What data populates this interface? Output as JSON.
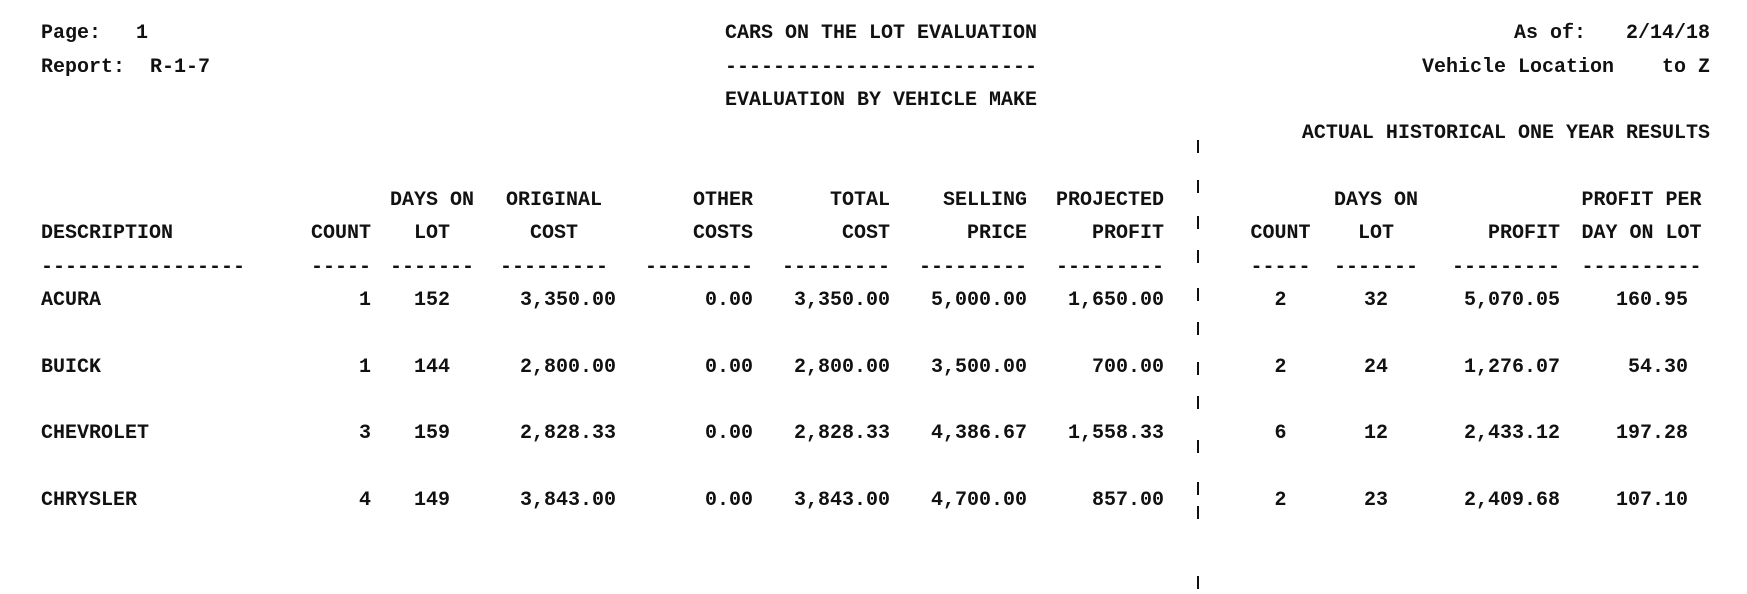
{
  "header": {
    "page_label": "Page:",
    "page_number": "1",
    "report_label": "Report:",
    "report_id": "R-1-7",
    "title": "CARS ON THE LOT EVALUATION",
    "title_underline": "--------------------------",
    "subtitle": "EVALUATION BY VEHICLE MAKE",
    "as_of_label": "As of:",
    "as_of_date": "2/14/18",
    "vehicle_location_label": "Vehicle Location",
    "vehicle_location_range": "to Z"
  },
  "historical_header": "ACTUAL HISTORICAL ONE YEAR RESULTS",
  "columns_current": [
    {
      "line1": "",
      "line2": "DESCRIPTION",
      "rule": "-----------------"
    },
    {
      "line1": "",
      "line2": "COUNT",
      "rule": "-----"
    },
    {
      "line1": "DAYS ON",
      "line2": "LOT",
      "rule": "-------"
    },
    {
      "line1": "ORIGINAL",
      "line2": "COST",
      "rule": "---------"
    },
    {
      "line1": "OTHER",
      "line2": "COSTS",
      "rule": "---------"
    },
    {
      "line1": "TOTAL",
      "line2": "COST",
      "rule": "---------"
    },
    {
      "line1": "SELLING",
      "line2": "PRICE",
      "rule": "---------"
    },
    {
      "line1": "PROJECTED",
      "line2": "PROFIT",
      "rule": "---------"
    }
  ],
  "columns_historical": [
    {
      "line1": "",
      "line2": "COUNT",
      "rule": "-----"
    },
    {
      "line1": "DAYS ON",
      "line2": "LOT",
      "rule": "-------"
    },
    {
      "line1": "",
      "line2": "PROFIT",
      "rule": "---------"
    },
    {
      "line1": "PROFIT PER",
      "line2": "DAY ON LOT",
      "rule": "----------"
    }
  ],
  "rows": [
    {
      "description": "ACURA",
      "count": "1",
      "days_on_lot": "152",
      "original_cost": "3,350.00",
      "other_costs": "0.00",
      "total_cost": "3,350.00",
      "selling_price": "5,000.00",
      "projected_profit": "1,650.00",
      "hist_count": "2",
      "hist_days_on_lot": "32",
      "hist_profit": "5,070.05",
      "hist_profit_per_day": "160.95"
    },
    {
      "description": "BUICK",
      "count": "1",
      "days_on_lot": "144",
      "original_cost": "2,800.00",
      "other_costs": "0.00",
      "total_cost": "2,800.00",
      "selling_price": "3,500.00",
      "projected_profit": "700.00",
      "hist_count": "2",
      "hist_days_on_lot": "24",
      "hist_profit": "1,276.07",
      "hist_profit_per_day": "54.30"
    },
    {
      "description": "CHEVROLET",
      "count": "3",
      "days_on_lot": "159",
      "original_cost": "2,828.33",
      "other_costs": "0.00",
      "total_cost": "2,828.33",
      "selling_price": "4,386.67",
      "projected_profit": "1,558.33",
      "hist_count": "6",
      "hist_days_on_lot": "12",
      "hist_profit": "2,433.12",
      "hist_profit_per_day": "197.28"
    },
    {
      "description": "CHRYSLER",
      "count": "4",
      "days_on_lot": "149",
      "original_cost": "3,843.00",
      "other_costs": "0.00",
      "total_cost": "3,843.00",
      "selling_price": "4,700.00",
      "projected_profit": "857.00",
      "hist_count": "2",
      "hist_days_on_lot": "23",
      "hist_profit": "2,409.68",
      "hist_profit_per_day": "107.10"
    }
  ]
}
